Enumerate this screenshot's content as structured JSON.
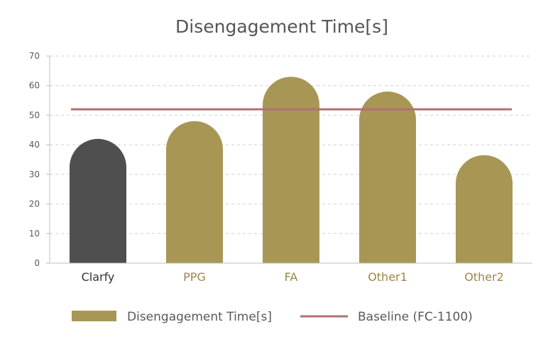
{
  "chart_data": {
    "type": "bar",
    "title": "Disengagement Time[s]",
    "categories": [
      "Clarfy",
      "PPG",
      "FA",
      "Other1",
      "Other2"
    ],
    "series": [
      {
        "name": "Disengagement Time[s]",
        "values": [
          42,
          48,
          63,
          58,
          36.5
        ]
      }
    ],
    "baseline": {
      "name": "Baseline (FC-1100)",
      "value": 52
    },
    "ylim": [
      0,
      70
    ],
    "yticks": [
      0,
      10,
      20,
      30,
      40,
      50,
      60,
      70
    ],
    "grid": true,
    "legend_position": "bottom",
    "colors": {
      "bar": "#a89655",
      "highlight_bar": "#4f4f4f",
      "baseline": "#b07070",
      "highlight_label": "#333333",
      "category_label": "#9b8747"
    },
    "highlight_category": "Clarfy"
  }
}
